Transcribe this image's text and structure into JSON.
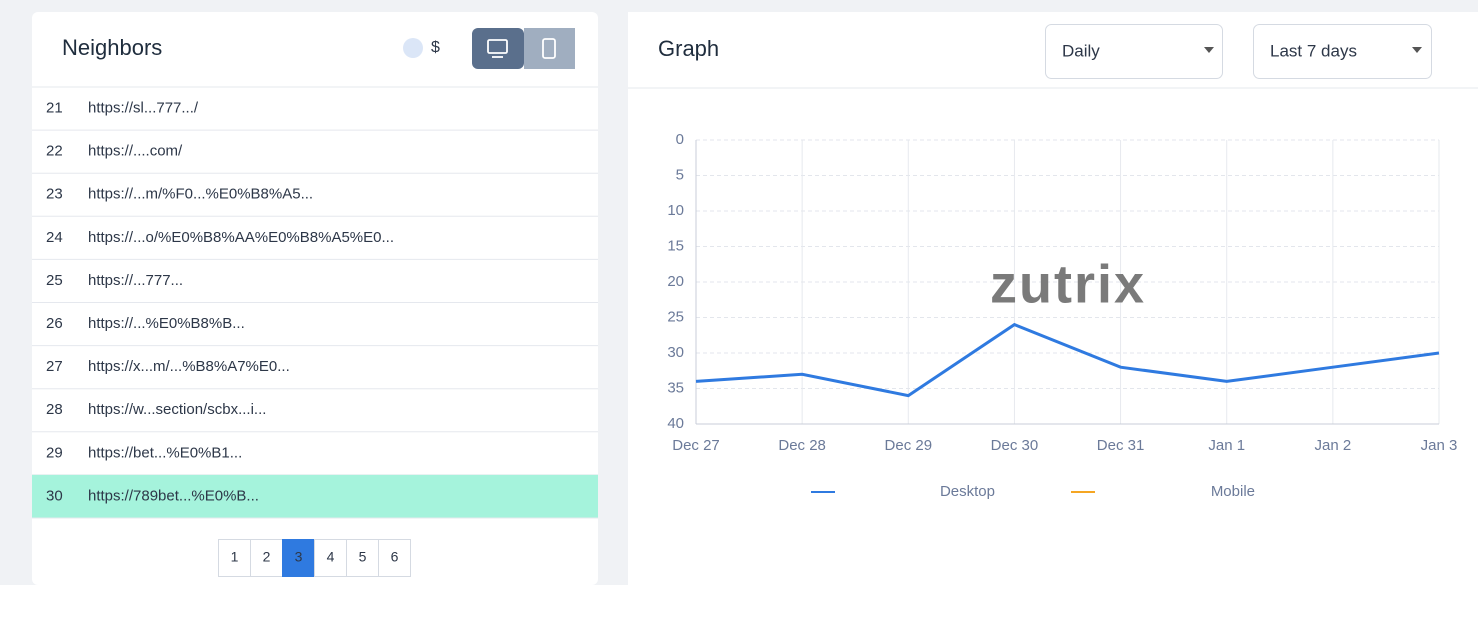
{
  "neighbors": {
    "title": "Neighbors",
    "currency_symbol": "$",
    "rows": [
      {
        "rank": "21",
        "url": "https://sl...777.../"
      },
      {
        "rank": "22",
        "url": "https://....com/"
      },
      {
        "rank": "23",
        "url": "https://...m/%F0...%E0%B8%A5..."
      },
      {
        "rank": "24",
        "url": "https://...o/%E0%B8%AA%E0%B8%A5%E0..."
      },
      {
        "rank": "25",
        "url": "https://...777..."
      },
      {
        "rank": "26",
        "url": "https://...%E0%B8%B..."
      },
      {
        "rank": "27",
        "url": "https://x...m/...%B8%A7%E0..."
      },
      {
        "rank": "28",
        "url": "https://w...section/scbx...i..."
      },
      {
        "rank": "29",
        "url": "https://bet...%E0%B1..."
      },
      {
        "rank": "30",
        "url": "https://789bet...%E0%B..."
      }
    ],
    "highlighted_row": 9,
    "pages": [
      "1",
      "2",
      "3",
      "4",
      "5",
      "6"
    ],
    "active_page": 2
  },
  "graph": {
    "title": "Graph",
    "interval": "Daily",
    "range": "Last 7 days",
    "watermark": "zutrix"
  },
  "chart_data": {
    "type": "line",
    "categories": [
      "Dec 27",
      "Dec 28",
      "Dec 29",
      "Dec 30",
      "Dec 31",
      "Jan 1",
      "Jan 2",
      "Jan 3"
    ],
    "series": [
      {
        "name": "Desktop",
        "color": "#2f7ae0",
        "values": [
          34,
          33,
          36,
          26,
          32,
          34,
          32,
          30
        ]
      },
      {
        "name": "Mobile",
        "color": "#f5a623",
        "values": [
          null,
          null,
          null,
          null,
          null,
          null,
          null,
          null
        ]
      }
    ],
    "ylim": [
      0,
      40
    ],
    "yticks": [
      0,
      5,
      10,
      15,
      20,
      25,
      30,
      35,
      40
    ],
    "y_reversed": true,
    "grid": true
  }
}
